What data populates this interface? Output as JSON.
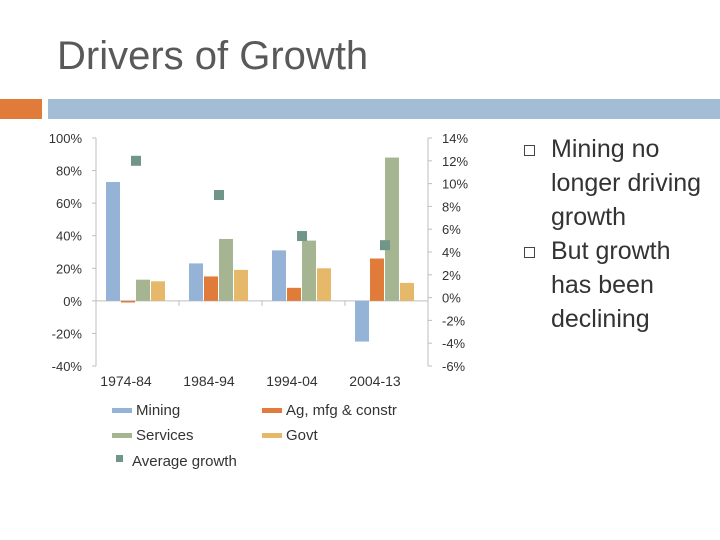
{
  "slide": {
    "title": "Drivers of Growth",
    "accent_colors": {
      "orange": "#e07b39",
      "blue": "#a3bdd6"
    },
    "bullets": [
      {
        "icon": "square-bullet-icon",
        "text": "Mining no longer driving growth"
      },
      {
        "icon": "square-bullet-icon",
        "text": "But growth has been declining"
      }
    ]
  },
  "chart_data": {
    "type": "bar",
    "title": "",
    "categories": [
      "1974-84",
      "1984-94",
      "1994-04",
      "2004-13"
    ],
    "y_left": {
      "ticks": [
        "100%",
        "80%",
        "60%",
        "40%",
        "20%",
        "0%",
        "-20%",
        "-40%"
      ],
      "ylim": [
        -40,
        100
      ]
    },
    "y_right": {
      "ticks": [
        "14%",
        "12%",
        "10%",
        "8%",
        "6%",
        "4%",
        "2%",
        "0%",
        "-2%",
        "-4%",
        "-6%"
      ],
      "ylim": [
        -6,
        14
      ]
    },
    "series": [
      {
        "name": "Mining",
        "color": "#95b3d7",
        "axis": "left",
        "values": [
          73,
          23,
          31,
          -25
        ]
      },
      {
        "name": "Ag, mfg & constr",
        "color": "#e07b39",
        "axis": "left",
        "values": [
          -1,
          15,
          8,
          26
        ]
      },
      {
        "name": "Services",
        "color": "#a5b592",
        "axis": "left",
        "values": [
          13,
          38,
          37,
          88
        ]
      },
      {
        "name": "Govt",
        "color": "#e6b86a",
        "axis": "left",
        "values": [
          12,
          19,
          20,
          11
        ]
      }
    ],
    "markers": [
      {
        "name": "Average growth",
        "color": "#6f9688",
        "axis": "right",
        "values": [
          12.0,
          9.0,
          5.4,
          4.6
        ]
      }
    ],
    "legend": {
      "placement": "bottom",
      "entries": [
        "Mining",
        "Ag, mfg & constr",
        "Services",
        "Govt",
        "Average growth"
      ]
    },
    "grid": false
  }
}
